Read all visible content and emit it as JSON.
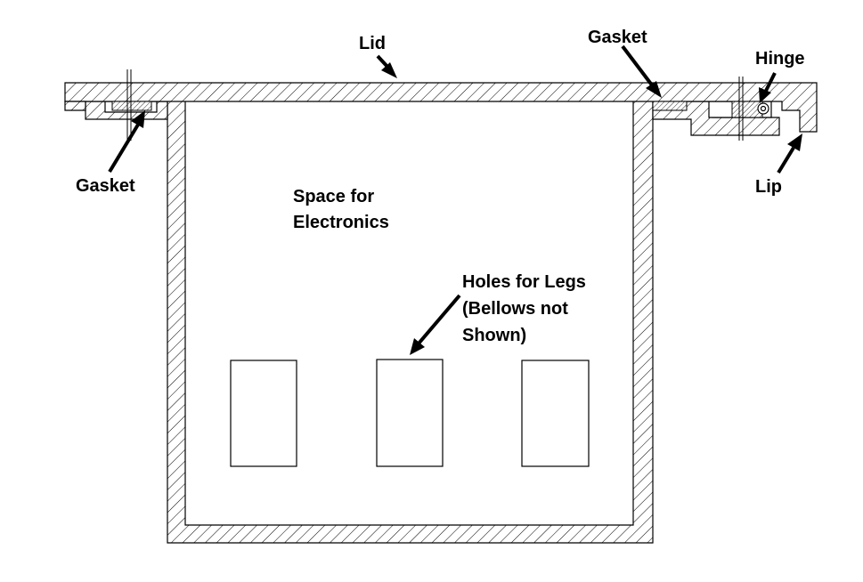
{
  "labels": {
    "lid": "Lid",
    "gasket_right": "Gasket",
    "hinge": "Hinge",
    "gasket_left": "Gasket",
    "lip": "Lip",
    "space_line1": "Space for",
    "space_line2": "Electronics",
    "holes_line1": "Holes for Legs",
    "holes_line2": "(Bellows not",
    "holes_line3": "Shown)"
  },
  "colors": {
    "line": "#000000",
    "background": "#ffffff"
  }
}
